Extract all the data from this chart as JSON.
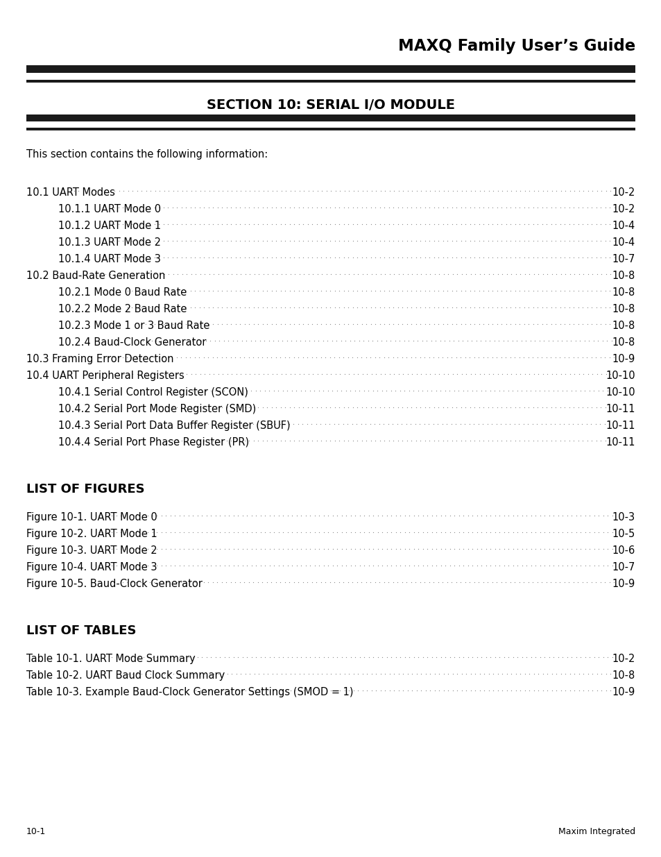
{
  "title": "MAXQ Family User’s Guide",
  "section_title": "SECTION 10: SERIAL I/O MODULE",
  "bg_color": "#ffffff",
  "text_color": "#000000",
  "intro_text": "This section contains the following information:",
  "toc_entries": [
    {
      "text": "10.1 UART Modes",
      "page": "10-2",
      "indent": 0
    },
    {
      "text": "10.1.1 UART Mode 0",
      "page": "10-2",
      "indent": 1
    },
    {
      "text": "10.1.2 UART Mode 1",
      "page": "10-4",
      "indent": 1
    },
    {
      "text": "10.1.3 UART Mode 2",
      "page": "10-4",
      "indent": 1
    },
    {
      "text": "10.1.4 UART Mode 3",
      "page": "10-7",
      "indent": 1
    },
    {
      "text": "10.2 Baud-Rate Generation",
      "page": "10-8",
      "indent": 0
    },
    {
      "text": "10.2.1 Mode 0 Baud Rate",
      "page": "10-8",
      "indent": 1
    },
    {
      "text": "10.2.2 Mode 2 Baud Rate",
      "page": "10-8",
      "indent": 1
    },
    {
      "text": "10.2.3 Mode 1 or 3 Baud Rate",
      "page": "10-8",
      "indent": 1
    },
    {
      "text": "10.2.4 Baud-Clock Generator",
      "page": "10-8",
      "indent": 1
    },
    {
      "text": "10.3 Framing Error Detection",
      "page": "10-9",
      "indent": 0
    },
    {
      "text": "10.4 UART Peripheral Registers",
      "page": "10-10",
      "indent": 0
    },
    {
      "text": "10.4.1 Serial Control Register (SCON)",
      "page": "10-10",
      "indent": 1
    },
    {
      "text": "10.4.2 Serial Port Mode Register (SMD)",
      "page": "10-11",
      "indent": 1
    },
    {
      "text": "10.4.3 Serial Port Data Buffer Register (SBUF)",
      "page": "10-11",
      "indent": 1
    },
    {
      "text": "10.4.4 Serial Port Phase Register (PR)",
      "page": "10-11",
      "indent": 1
    }
  ],
  "figures_title": "LIST OF FIGURES",
  "figures_entries": [
    {
      "text": "Figure 10-1. UART Mode 0",
      "page": "10-3"
    },
    {
      "text": "Figure 10-2. UART Mode 1",
      "page": "10-5"
    },
    {
      "text": "Figure 10-3. UART Mode 2",
      "page": "10-6"
    },
    {
      "text": "Figure 10-4. UART Mode 3",
      "page": "10-7"
    },
    {
      "text": "Figure 10-5. Baud-Clock Generator",
      "page": "10-9"
    }
  ],
  "tables_title": "LIST OF TABLES",
  "tables_entries": [
    {
      "text": "Table 10-1. UART Mode Summary",
      "page": "10-2"
    },
    {
      "text": "Table 10-2. UART Baud Clock Summary",
      "page": "10-8"
    },
    {
      "text": "Table 10-3. Example Baud-Clock Generator Settings (SMOD = 1)",
      "page": "10-9"
    }
  ],
  "footer_left": "10-1",
  "footer_right": "Maxim Integrated",
  "bar_color": "#1a1a1a"
}
